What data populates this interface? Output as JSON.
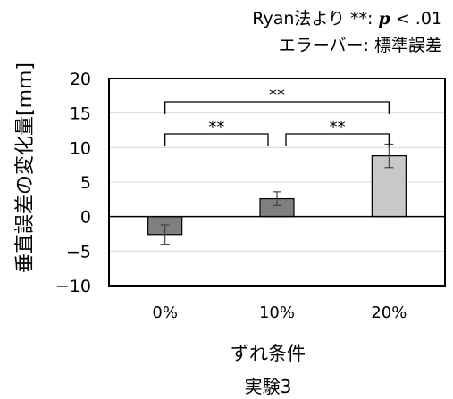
{
  "annotations": {
    "method_prefix": "Ryan法より  **: ",
    "p_symbol": "p",
    "p_suffix": " < .01",
    "errorbar_note": "エラーバー: 標準誤差"
  },
  "chart_data": {
    "type": "bar",
    "categories": [
      "0%",
      "10%",
      "20%"
    ],
    "values": [
      -2.6,
      2.6,
      8.8
    ],
    "errors": [
      1.4,
      1.0,
      1.7
    ],
    "colors": [
      "#7f7f7f",
      "#7f7f7f",
      "#c8c8c8"
    ],
    "ylabel": "垂直誤差の変化量[mm]",
    "xlabel": "ずれ条件",
    "title": "実験3",
    "ylim": [
      -10,
      20
    ],
    "yticks": [
      20,
      15,
      10,
      5,
      0,
      -5,
      -10
    ],
    "grid": true,
    "significance": [
      {
        "from": 0,
        "to": 2,
        "label": "**"
      },
      {
        "from": 0,
        "to": 1,
        "label": "**"
      },
      {
        "from": 1,
        "to": 2,
        "label": "**"
      }
    ]
  }
}
